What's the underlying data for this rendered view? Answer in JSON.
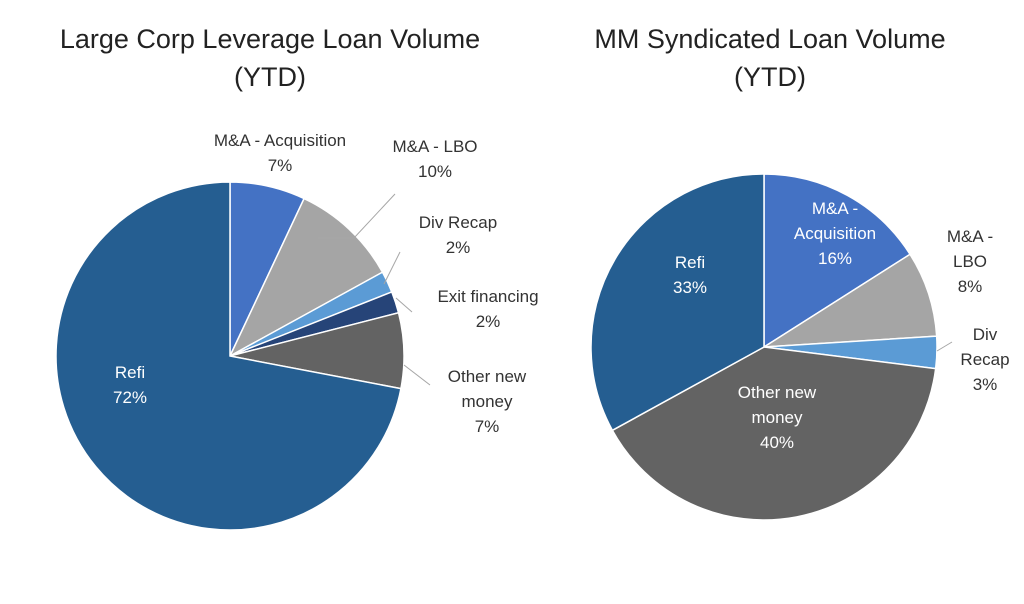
{
  "chart_data": [
    {
      "type": "pie",
      "title_lines": [
        "Large Corp Leverage Loan Volume",
        "(YTD)"
      ],
      "slices": [
        {
          "label_lines": [
            "M&A - Acquisition"
          ],
          "value_label": "7%",
          "value": 7,
          "color": "#4472C4"
        },
        {
          "label_lines": [
            "M&A - LBO"
          ],
          "value_label": "10%",
          "value": 10,
          "color": "#A5A5A5"
        },
        {
          "label_lines": [
            "Div Recap"
          ],
          "value_label": "2%",
          "value": 2,
          "color": "#5B9BD5"
        },
        {
          "label_lines": [
            "Exit financing"
          ],
          "value_label": "2%",
          "value": 2,
          "color": "#264478"
        },
        {
          "label_lines": [
            "Other new",
            "money"
          ],
          "value_label": "7%",
          "value": 7,
          "color": "#636363"
        },
        {
          "label_lines": [
            "Refi"
          ],
          "value_label": "72%",
          "value": 72,
          "color": "#255E91"
        }
      ]
    },
    {
      "type": "pie",
      "title_lines": [
        "MM Syndicated Loan Volume",
        "(YTD)"
      ],
      "slices": [
        {
          "label_lines": [
            "M&A -",
            "Acquisition"
          ],
          "value_label": "16%",
          "value": 16,
          "color": "#4472C4"
        },
        {
          "label_lines": [
            "M&A -",
            "LBO"
          ],
          "value_label": "8%",
          "value": 8,
          "color": "#A5A5A5"
        },
        {
          "label_lines": [
            "Div",
            "Recap"
          ],
          "value_label": "3%",
          "value": 3,
          "color": "#5B9BD5"
        },
        {
          "label_lines": [
            "Other new",
            "money"
          ],
          "value_label": "40%",
          "value": 40,
          "color": "#636363"
        },
        {
          "label_lines": [
            "Refi"
          ],
          "value_label": "33%",
          "value": 33,
          "color": "#255E91"
        }
      ]
    }
  ]
}
